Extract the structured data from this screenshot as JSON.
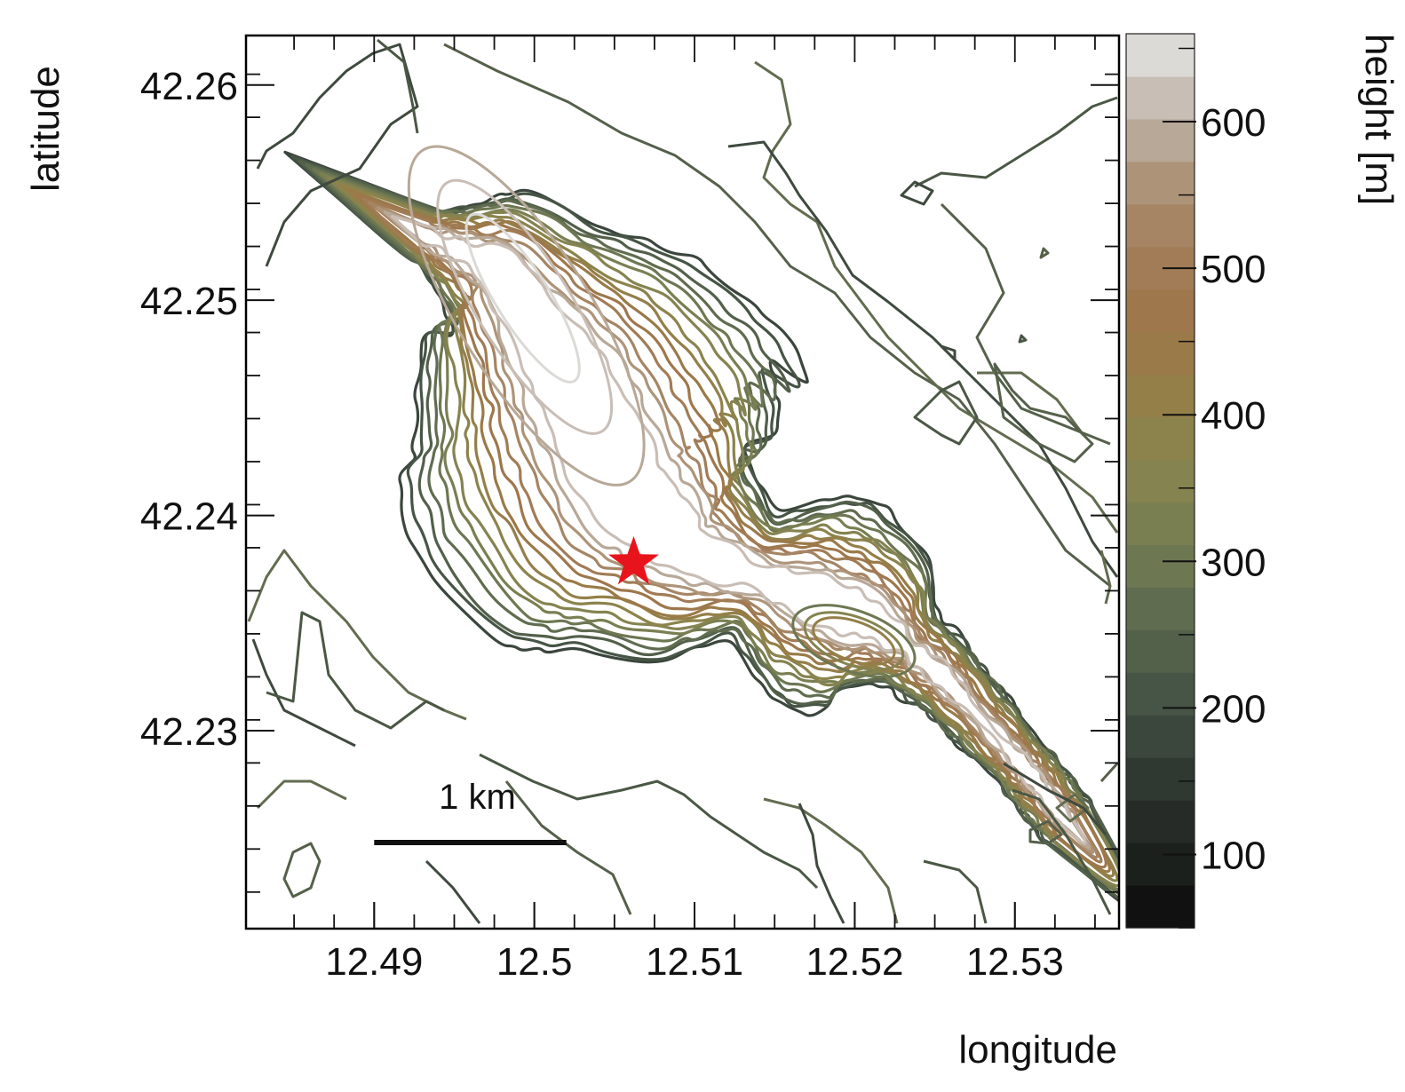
{
  "chart_data": {
    "type": "contour",
    "xlabel": "longitude",
    "ylabel": "latitude",
    "colorbar_label": "height [m]",
    "xlim": [
      12.482,
      12.5365
    ],
    "ylim": [
      42.2208,
      42.2623
    ],
    "x_ticks": [
      12.49,
      12.5,
      12.51,
      12.52,
      12.53
    ],
    "x_tick_labels": [
      "12.49",
      "12.5",
      "12.51",
      "12.52",
      "12.53"
    ],
    "y_ticks": [
      42.23,
      42.24,
      42.25,
      42.26
    ],
    "y_tick_labels": [
      "42.23",
      "42.24",
      "42.25",
      "42.26"
    ],
    "colorbar_range": [
      50,
      660
    ],
    "colorbar_ticks": [
      100,
      200,
      300,
      400,
      500,
      600
    ],
    "colorbar_tick_labels": [
      "100",
      "200",
      "300",
      "400",
      "500",
      "600"
    ],
    "contour_interval_m": 30,
    "contour_levels_m": [
      150,
      180,
      210,
      240,
      270,
      300,
      330,
      360,
      390,
      420,
      450,
      480,
      510,
      540,
      570,
      600,
      630
    ],
    "colorbar_colors": [
      "#111111",
      "#1c201d",
      "#262b27",
      "#303832",
      "#3b463d",
      "#465545",
      "#53604a",
      "#606c4f",
      "#6d7752",
      "#7a7f52",
      "#858350",
      "#8c834c",
      "#947f49",
      "#9a7a48",
      "#9e774c",
      "#a17c56",
      "#a58564",
      "#ad9479",
      "#b8a897",
      "#c9beb6",
      "#dcdad6"
    ],
    "peak": {
      "lon": 12.5015,
      "lat": 42.2435,
      "height_m": 650
    },
    "secondary_peak": {
      "lon": 12.5205,
      "lat": 42.234,
      "height_m": 420
    },
    "marker": {
      "type": "star",
      "color": "#e8141c",
      "lon": 12.5062,
      "lat": 42.2378
    },
    "scale_bar": {
      "label": "1 km",
      "lon_start": 12.49,
      "lon_end": 12.502,
      "lat": 42.2248
    }
  }
}
